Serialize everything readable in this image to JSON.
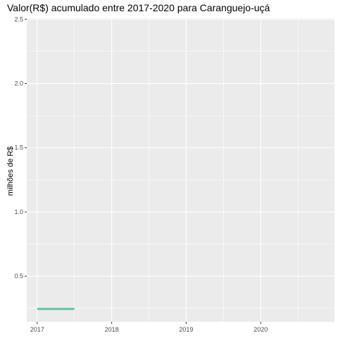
{
  "chart_data": {
    "type": "line",
    "title": "Valor(R$) acumulado entre 2017-2020 para Caranguejo-uçá",
    "xlabel": "",
    "ylabel": "milhões de R$",
    "x_ticks": [
      "2017",
      "2018",
      "2019",
      "2020"
    ],
    "y_ticks": [
      "0.5",
      "1.0",
      "1.5",
      "2.0",
      "2.5"
    ],
    "xlim": [
      2016.86,
      2020.99
    ],
    "ylim": [
      0.145,
      2.507
    ],
    "grid": true,
    "legend": "none",
    "series": [
      {
        "x": [
          2017.0,
          2017.5
        ],
        "y": [
          0.245,
          0.245
        ],
        "color": "#66c2a5"
      }
    ]
  },
  "colors": {
    "panel_background": "#ebebeb",
    "grid": "#ffffff",
    "axis_text": "#4d4d4d",
    "series": "#66c2a5"
  }
}
